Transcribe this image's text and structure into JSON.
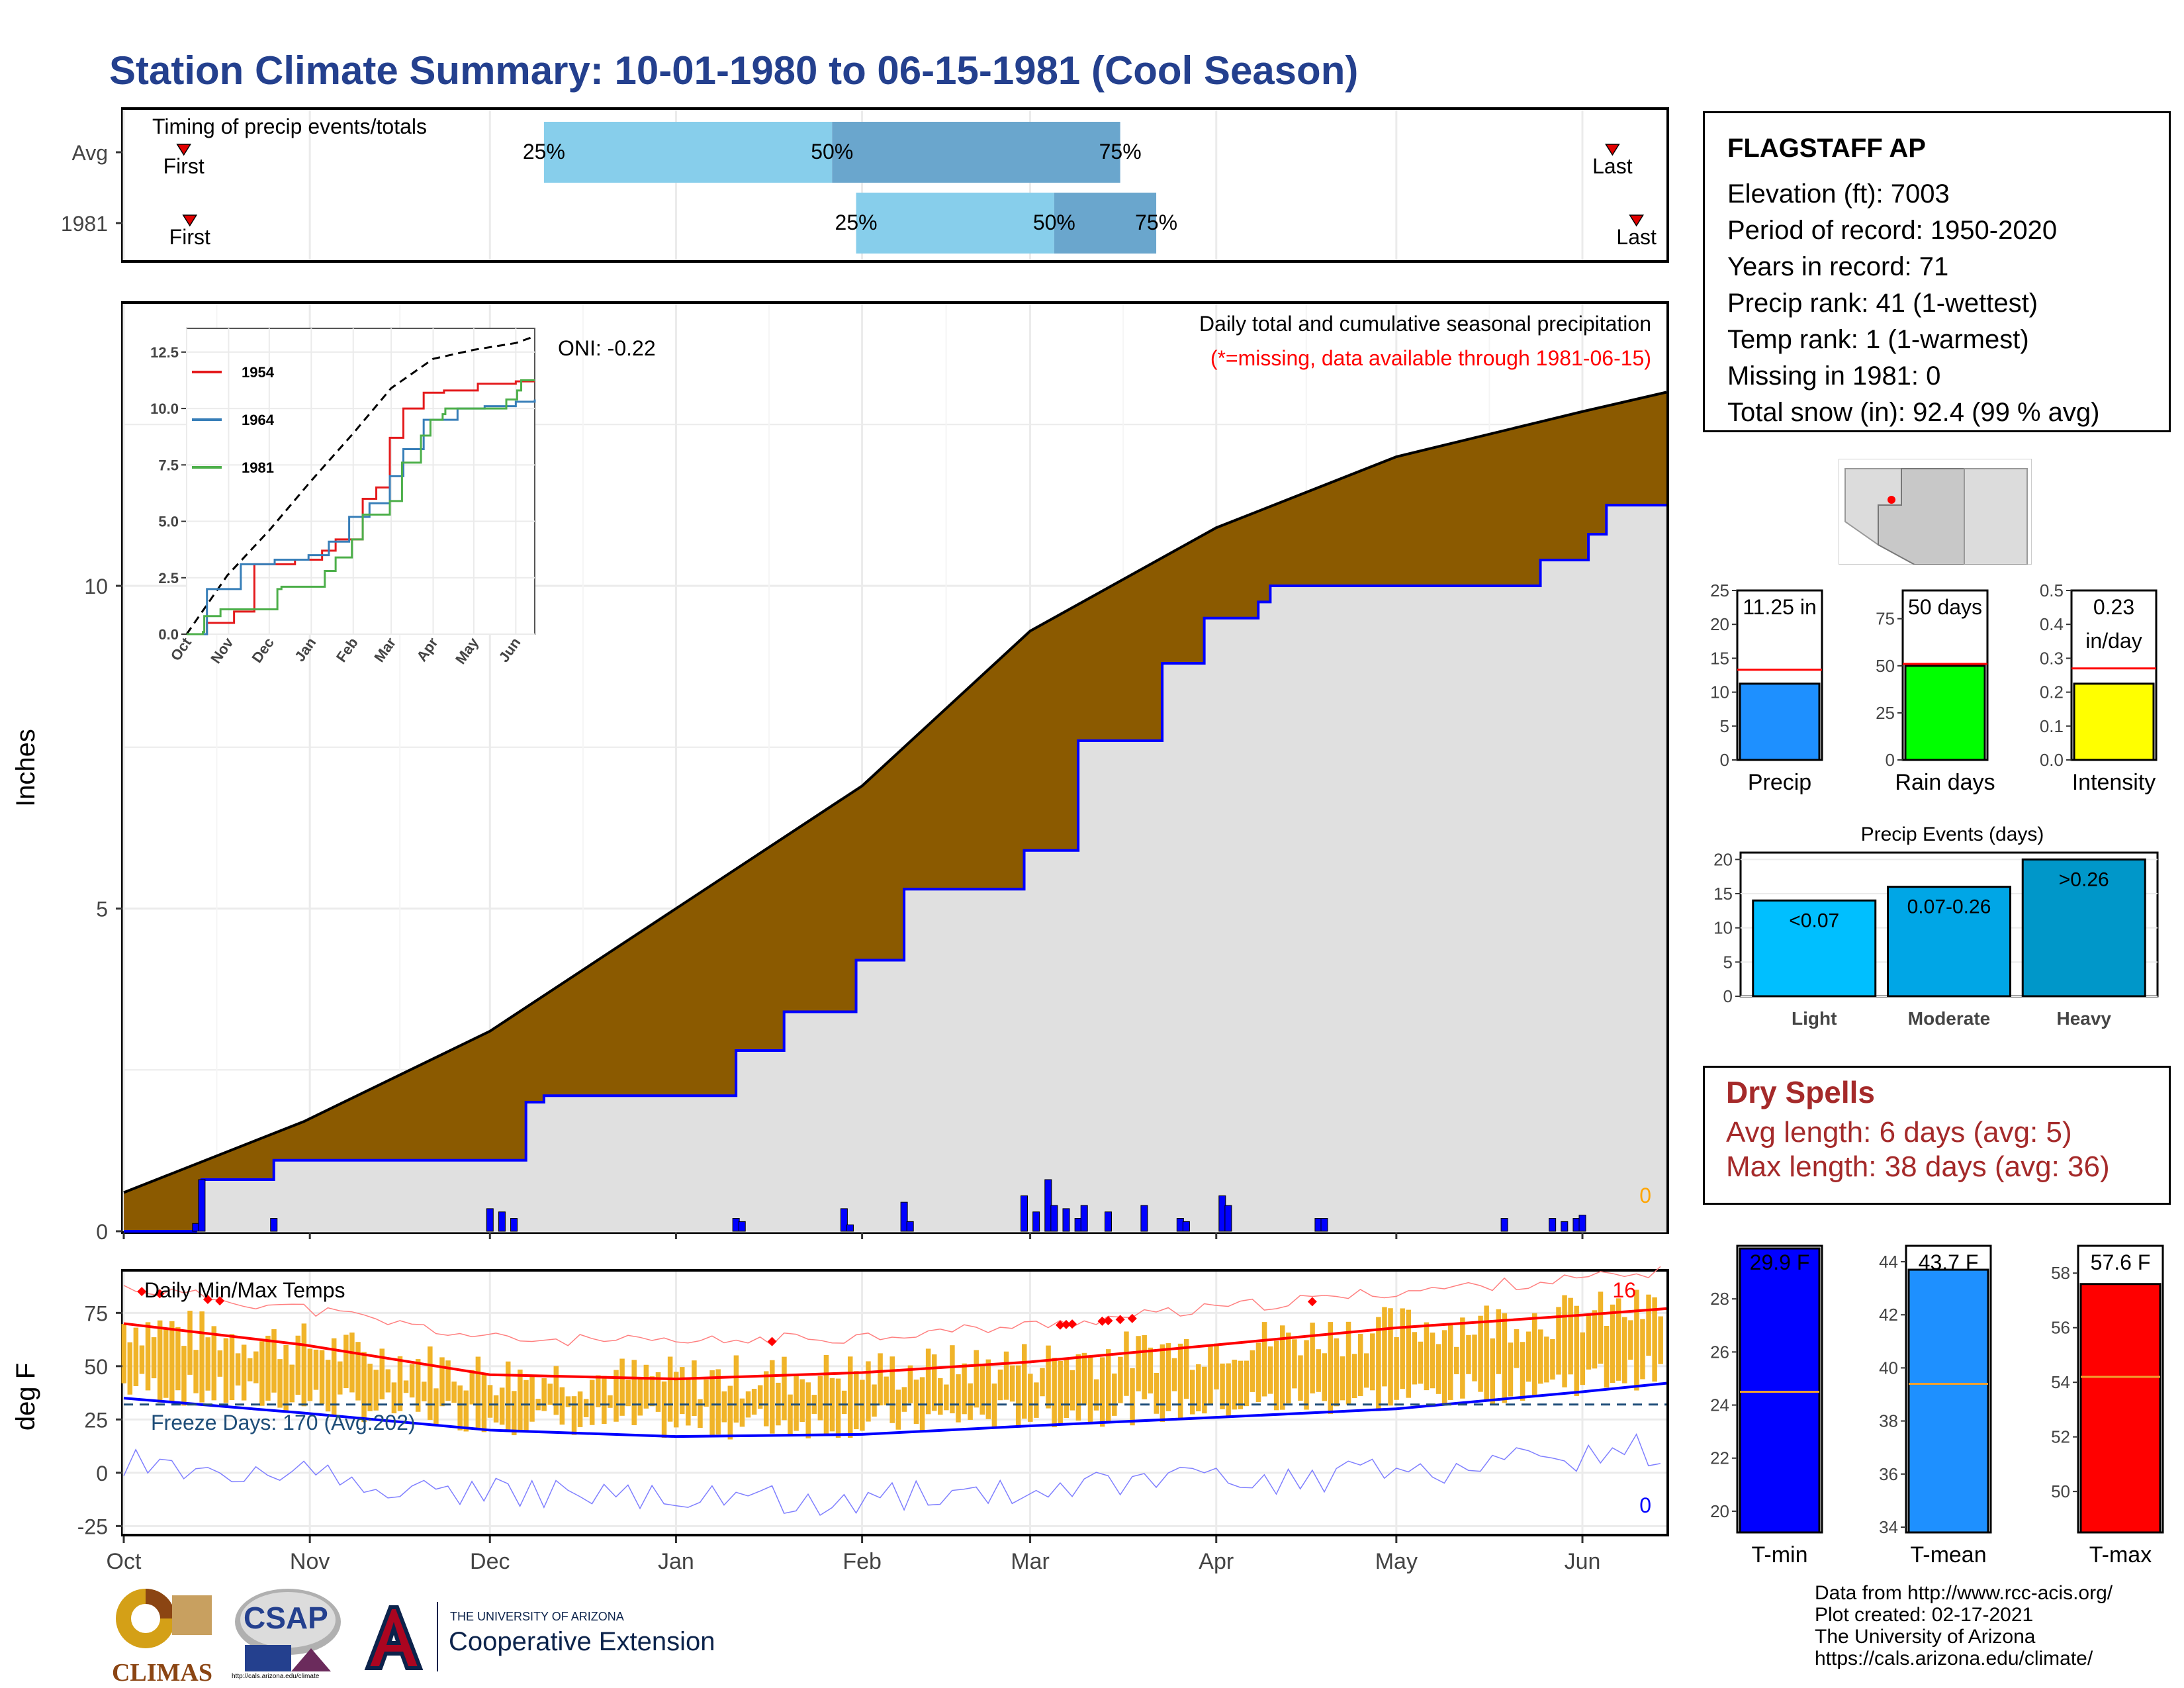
{
  "title": "Station Climate Summary: 10-01-1980 to 06-15-1981 (Cool Season)",
  "station": {
    "name": "FLAGSTAFF AP",
    "lines": [
      "Elevation (ft): 7003",
      "Period of record: 1950-2020",
      "Years in record: 71",
      "Precip rank: 41 (1-wettest)",
      "Temp rank: 1 (1-warmest)",
      "Missing in 1981: 0",
      "Total snow (in): 92.4 (99 % avg)"
    ],
    "marker_color": "#ff0000"
  },
  "timing_panel": {
    "title": "Timing of precip events/totals",
    "rows": [
      {
        "label": "Avg",
        "first": "First",
        "last": "Last",
        "p25": "25%",
        "p50": "50%",
        "p75": "75%",
        "first_day": 10,
        "p25_day": 70,
        "p50_day": 118,
        "p75_day": 166,
        "last_day": 248
      },
      {
        "label": "1981",
        "first": "First",
        "last": "Last",
        "p25": "25%",
        "p50": "50%",
        "p75": "75%",
        "first_day": 11,
        "p25_day": 122,
        "p50_day": 155,
        "p75_day": 172,
        "last_day": 252
      }
    ],
    "colors": {
      "light": "#87ceeb",
      "dark": "#6aa6cd",
      "marker": "#e00000"
    }
  },
  "precip_panel": {
    "title": "Daily total and cumulative seasonal precipitation",
    "subtitle": "(*=missing, data available through 1981-06-15)",
    "oni": "ONI: -0.22",
    "ylabel": "Inches",
    "yticks": [
      "0",
      "5",
      "10"
    ],
    "missing_count": "0",
    "colors": {
      "avg_fill": "#8b5a00",
      "season_fill": "#e0e0e0",
      "season_line": "#0000ff",
      "avg_line": "#000000",
      "daily_bar": "#0000ff",
      "daily_small": "#66b2ff",
      "missing_text": "#ffa500"
    }
  },
  "inset": {
    "yticks": [
      "0.0",
      "2.5",
      "5.0",
      "7.5",
      "10.0",
      "12.5"
    ],
    "xticks": [
      "Oct",
      "Nov",
      "Dec",
      "Jan",
      "Feb",
      "Mar",
      "Apr",
      "May",
      "Jun"
    ],
    "legend": [
      {
        "name": "1954",
        "color": "#e41a1c"
      },
      {
        "name": "1964",
        "color": "#377eb8"
      },
      {
        "name": "1981",
        "color": "#4daf4a"
      }
    ]
  },
  "temp_panel": {
    "title": "Daily Min/Max Temps",
    "ylabel": "deg F",
    "yticks": [
      "-25",
      "0",
      "25",
      "50",
      "75"
    ],
    "freeze_label": "Freeze Days: 170 (Avg:202)",
    "high_count": "16",
    "low_count": "0",
    "colors": {
      "bars": "#f0b429",
      "max_avg": "#ff0000",
      "min_avg": "#0000ff",
      "max_rec": "#ff8080",
      "min_rec": "#8080ff",
      "freeze": "#1f4e79"
    }
  },
  "months": [
    "Oct",
    "Nov",
    "Dec",
    "Jan",
    "Feb",
    "Mar",
    "Apr",
    "May",
    "Jun"
  ],
  "gauges": {
    "precip": {
      "label": "Precip",
      "value_text": "11.25 in",
      "value": 11.25,
      "avg": 13.3,
      "yticks": [
        "0",
        "5",
        "10",
        "15",
        "20",
        "25"
      ],
      "ymax": 25,
      "color": "#1e90ff"
    },
    "rain_days": {
      "label": "Rain days",
      "value_text": "50 days",
      "value": 50,
      "avg": 51,
      "yticks": [
        "0",
        "25",
        "50",
        "75"
      ],
      "ymax": 90,
      "color": "#00ff00"
    },
    "intensity": {
      "label": "Intensity",
      "value_text": "0.23",
      "value_text2": "in/day",
      "value": 0.225,
      "avg": 0.27,
      "yticks": [
        "0.0",
        "0.1",
        "0.2",
        "0.3",
        "0.4",
        "0.5"
      ],
      "ymax": 0.5,
      "color": "#ffff00"
    }
  },
  "events": {
    "title": "Precip Events (days)",
    "yticks": [
      "0",
      "5",
      "10",
      "15",
      "20"
    ],
    "bars": [
      {
        "label": "Light",
        "range": "<0.07",
        "value": 14,
        "color": "#00bfff"
      },
      {
        "label": "Moderate",
        "range": "0.07-0.26",
        "value": 16,
        "color": "#00a6e6"
      },
      {
        "label": "Heavy",
        "range": ">0.26",
        "value": 20,
        "color": "#0097c9"
      }
    ]
  },
  "dry_spells": {
    "title": "Dry Spells",
    "avg": "Avg length: 6 days (avg: 5)",
    "max": "Max length: 38 days (avg: 36)"
  },
  "temp_gauges": [
    {
      "label": "T-min",
      "value_text": "29.9 F",
      "value": 29.9,
      "avg": 24.5,
      "yticks": [
        "20",
        "22",
        "24",
        "26",
        "28"
      ],
      "ymin": 19.2,
      "ymax": 30.0,
      "color": "#0000ff"
    },
    {
      "label": "T-mean",
      "value_text": "43.7 F",
      "value": 43.7,
      "avg": 39.4,
      "yticks": [
        "34",
        "36",
        "38",
        "40",
        "42",
        "44"
      ],
      "ymin": 33.8,
      "ymax": 44.6,
      "color": "#1e90ff"
    },
    {
      "label": "T-max",
      "value_text": "57.6 F",
      "value": 57.6,
      "avg": 54.2,
      "yticks": [
        "50",
        "52",
        "54",
        "56",
        "58"
      ],
      "ymin": 48.5,
      "ymax": 59.0,
      "color": "#ff0000"
    }
  ],
  "footer": {
    "lines": [
      "Data from http://www.rcc-acis.org/",
      "Plot created: 02-17-2021",
      "The University of Arizona",
      "https://cals.arizona.edu/climate/"
    ],
    "logos": {
      "climas": "CLIMAS",
      "csap": "CSAP",
      "csap_url": "http://cals.arizona.edu/climate",
      "ua_small": "THE UNIVERSITY OF ARIZONA",
      "ua_large": "Cooperative Extension"
    }
  },
  "chart_data": [
    {
      "type": "timeline",
      "title": "Timing of precip events/totals",
      "categories": [
        "Avg",
        "1981"
      ],
      "series": [
        {
          "name": "First",
          "values": [
            10,
            11
          ]
        },
        {
          "name": "25%",
          "values": [
            70,
            122
          ]
        },
        {
          "name": "50%",
          "values": [
            118,
            155
          ]
        },
        {
          "name": "75%",
          "values": [
            166,
            172
          ]
        },
        {
          "name": "Last",
          "values": [
            248,
            252
          ]
        }
      ],
      "x_units": "days since season start"
    },
    {
      "type": "area",
      "title": "Daily total and cumulative seasonal precipitation",
      "ylabel": "Inches",
      "ylim": [
        0,
        13.2
      ],
      "series": [
        {
          "name": "Average cumulative",
          "x": [
            0,
            30,
            61,
            92,
            123,
            151,
            182,
            212,
            243,
            257
          ],
          "values": [
            0.6,
            1.7,
            3.1,
            5.0,
            6.9,
            9.3,
            10.9,
            12.0,
            12.7,
            13.0
          ]
        },
        {
          "name": "1981 cumulative",
          "x": [
            0,
            12,
            13,
            25,
            61,
            67,
            70,
            102,
            110,
            122,
            130,
            150,
            159,
            173,
            180,
            189,
            191,
            236,
            244,
            247,
            257
          ],
          "values": [
            0,
            0.1,
            0.8,
            1.1,
            1.1,
            2.0,
            2.1,
            2.8,
            3.4,
            4.2,
            5.3,
            5.9,
            7.6,
            8.8,
            9.5,
            9.75,
            10.0,
            10.4,
            10.8,
            11.25,
            11.25
          ]
        }
      ],
      "daily_x": [
        12,
        13,
        25,
        61,
        63,
        65,
        102,
        103,
        120,
        121,
        130,
        131,
        150,
        152,
        154,
        155,
        157,
        159,
        160,
        164,
        170,
        176,
        177,
        183,
        184,
        199,
        200,
        230,
        238,
        240,
        242,
        243
      ],
      "daily_values": [
        0.12,
        0.8,
        0.2,
        0.35,
        0.3,
        0.2,
        0.2,
        0.15,
        0.35,
        0.1,
        0.45,
        0.15,
        0.55,
        0.3,
        0.8,
        0.4,
        0.35,
        0.2,
        0.4,
        0.3,
        0.4,
        0.2,
        0.15,
        0.55,
        0.4,
        0.2,
        0.2,
        0.2,
        0.2,
        0.15,
        0.2,
        0.25
      ]
    },
    {
      "type": "line",
      "title": "",
      "ylim": [
        0,
        13.2
      ],
      "xticks": [
        "Oct",
        "Nov",
        "Dec",
        "Jan",
        "Feb",
        "Mar",
        "Apr",
        "May",
        "Jun"
      ],
      "series": [
        {
          "name": "avg",
          "x": [
            0,
            30,
            61,
            92,
            123,
            151,
            182,
            212,
            243,
            257
          ],
          "values": [
            0,
            2.6,
            4.6,
            6.8,
            8.9,
            10.9,
            12.2,
            12.6,
            12.9,
            13.2
          ]
        },
        {
          "name": "1954",
          "x": [
            0,
            15,
            35,
            50,
            80,
            100,
            110,
            130,
            140,
            150,
            160,
            175,
            190,
            215,
            243,
            257
          ],
          "values": [
            0,
            0.5,
            1.0,
            3.1,
            3.3,
            3.7,
            4.2,
            6.0,
            6.5,
            8.7,
            10.0,
            10.7,
            10.8,
            11.1,
            11.2,
            11.2
          ]
        },
        {
          "name": "1964",
          "x": [
            0,
            15,
            40,
            65,
            90,
            105,
            120,
            135,
            150,
            160,
            175,
            200,
            220,
            243,
            257
          ],
          "values": [
            0,
            2.0,
            3.1,
            3.3,
            3.5,
            4.1,
            5.2,
            5.8,
            7.0,
            8.2,
            9.5,
            10.0,
            10.1,
            10.3,
            10.4
          ]
        },
        {
          "name": "1981",
          "x": [
            0,
            12,
            13,
            25,
            61,
            67,
            70,
            102,
            110,
            122,
            130,
            150,
            159,
            173,
            180,
            189,
            191,
            236,
            244,
            247,
            257
          ],
          "values": [
            0,
            0.1,
            0.8,
            1.1,
            1.1,
            2.0,
            2.1,
            2.8,
            3.4,
            4.2,
            5.3,
            5.9,
            7.6,
            8.8,
            9.5,
            9.75,
            10.0,
            10.4,
            10.8,
            11.25,
            11.25
          ]
        }
      ]
    },
    {
      "type": "bar",
      "title": "Daily Min/Max Temps",
      "ylabel": "deg F",
      "ylim": [
        -28,
        93
      ],
      "series": [
        {
          "name": "max avg",
          "x": [
            0,
            30,
            61,
            92,
            123,
            151,
            182,
            212,
            243,
            257
          ],
          "values": [
            70,
            60,
            46,
            44,
            47,
            52,
            60,
            68,
            74,
            77
          ]
        },
        {
          "name": "min avg",
          "x": [
            0,
            30,
            61,
            92,
            123,
            151,
            182,
            212,
            243,
            257
          ],
          "values": [
            35,
            28,
            20,
            17,
            18,
            22,
            26,
            30,
            38,
            42
          ]
        },
        {
          "name": "freeze line",
          "values": [
            32
          ]
        }
      ]
    },
    {
      "type": "bar",
      "title": "Precip Events (days)",
      "categories": [
        "Light",
        "Moderate",
        "Heavy"
      ],
      "values": [
        14,
        16,
        20
      ],
      "ylim": [
        0,
        21
      ]
    },
    {
      "type": "bar",
      "categories": [
        "Precip",
        "Rain days",
        "Intensity",
        "T-min",
        "T-mean",
        "T-max"
      ],
      "values": [
        11.25,
        50,
        0.23,
        29.9,
        43.7,
        57.6
      ]
    }
  ]
}
